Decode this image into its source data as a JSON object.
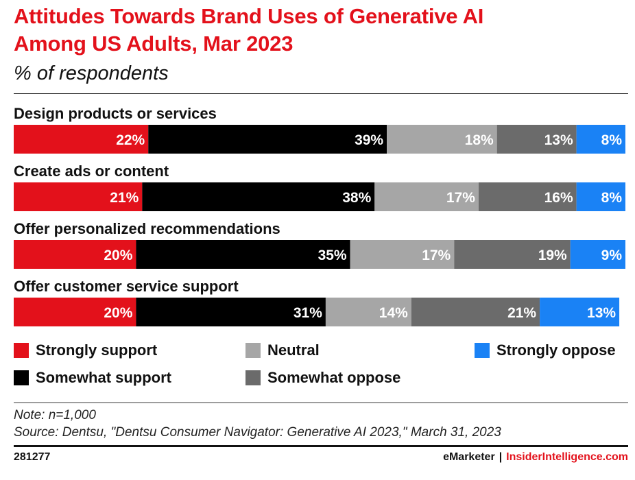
{
  "header": {
    "title_line1": "Attitudes Towards Brand Uses of Generative AI",
    "title_line2": "Among US Adults, Mar 2023",
    "subtitle": "% of respondents"
  },
  "colors": {
    "strongly_support": "#e3111b",
    "somewhat_support": "#000000",
    "neutral": "#a6a6a6",
    "somewhat_oppose": "#6b6b6b",
    "strongly_oppose": "#1a82f5"
  },
  "chart_data": {
    "type": "bar",
    "orientation": "horizontal",
    "stacked": true,
    "title": "Attitudes Towards Brand Uses of Generative AI Among US Adults, Mar 2023",
    "subtitle": "% of respondents",
    "xlim": [
      0,
      100
    ],
    "categories": [
      "Design products or services",
      "Create ads or content",
      "Offer personalized recommendations",
      "Offer customer service support"
    ],
    "series": [
      {
        "name": "Strongly support",
        "color": "#e3111b",
        "values": [
          22,
          21,
          20,
          20
        ]
      },
      {
        "name": "Somewhat support",
        "color": "#000000",
        "values": [
          39,
          38,
          35,
          31
        ]
      },
      {
        "name": "Neutral",
        "color": "#a6a6a6",
        "values": [
          18,
          17,
          17,
          14
        ]
      },
      {
        "name": "Somewhat oppose",
        "color": "#6b6b6b",
        "values": [
          13,
          16,
          19,
          21
        ]
      },
      {
        "name": "Strongly oppose",
        "color": "#1a82f5",
        "values": [
          8,
          8,
          9,
          13
        ]
      }
    ],
    "value_suffix": "%",
    "legend_position": "bottom"
  },
  "legend": {
    "strongly_support": "Strongly support",
    "somewhat_support": "Somewhat support",
    "neutral": "Neutral",
    "somewhat_oppose": "Somewhat oppose",
    "strongly_oppose": "Strongly oppose"
  },
  "notes": {
    "note": "Note: n=1,000",
    "source": "Source: Dentsu, \"Dentsu Consumer Navigator: Generative AI 2023,\" March 31, 2023"
  },
  "footer": {
    "chart_id": "281277",
    "brand": "eMarketer",
    "separator": "|",
    "brand2": "InsiderIntelligence.com"
  }
}
